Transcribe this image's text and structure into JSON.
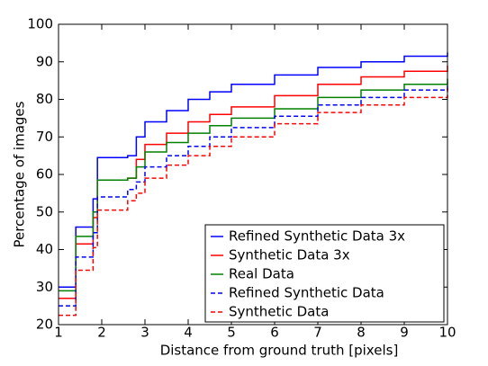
{
  "chart_data": {
    "type": "line",
    "drawstyle": "steps-post",
    "xlabel": "Distance from ground truth [pixels]",
    "ylabel": "Percentage of images",
    "x": [
      1,
      1.4,
      1.8,
      1.9,
      2.6,
      2.8,
      3,
      3.5,
      4,
      4.5,
      5,
      6,
      7,
      8,
      9,
      10
    ],
    "series": [
      {
        "name": "Refined Synthetic Data 3x",
        "color": "#0000ff",
        "linestyle": "solid",
        "values": [
          30,
          46,
          53.5,
          64.5,
          65,
          70,
          74,
          77,
          80,
          82,
          84,
          86.5,
          88.5,
          90,
          91.5,
          92.5
        ]
      },
      {
        "name": "Synthetic Data 3x",
        "color": "#ff0000",
        "linestyle": "solid",
        "values": [
          27,
          41.5,
          48.5,
          58.5,
          59,
          64,
          68,
          71,
          74,
          76,
          78,
          81,
          84,
          86,
          87.5,
          89
        ]
      },
      {
        "name": "Real Data",
        "color": "#008000",
        "linestyle": "solid",
        "values": [
          29,
          43.5,
          50,
          58.5,
          59,
          62,
          66,
          68.5,
          71,
          73,
          75,
          77.5,
          80.5,
          82.5,
          84,
          85.5
        ]
      },
      {
        "name": "Refined Synthetic Data",
        "color": "#0000ff",
        "linestyle": "dashed",
        "values": [
          25,
          38,
          44.5,
          54,
          56,
          58,
          62,
          65,
          67.5,
          70,
          72.5,
          75.5,
          78.5,
          80.5,
          82.5,
          84.5
        ]
      },
      {
        "name": "Synthetic Data",
        "color": "#ff0000",
        "linestyle": "dashed",
        "values": [
          22.5,
          34.5,
          40.5,
          50.5,
          53,
          55,
          59,
          62.5,
          65,
          67.5,
          70,
          73.5,
          76.5,
          78.5,
          80.5,
          83
        ]
      }
    ],
    "xlim": [
      1,
      10
    ],
    "xticks": [
      1,
      2,
      3,
      4,
      5,
      6,
      7,
      8,
      9,
      10
    ],
    "ylim": [
      20,
      100
    ],
    "yticks": [
      20,
      30,
      40,
      50,
      60,
      70,
      80,
      90,
      100
    ],
    "grid": false,
    "legend": "lower right"
  }
}
